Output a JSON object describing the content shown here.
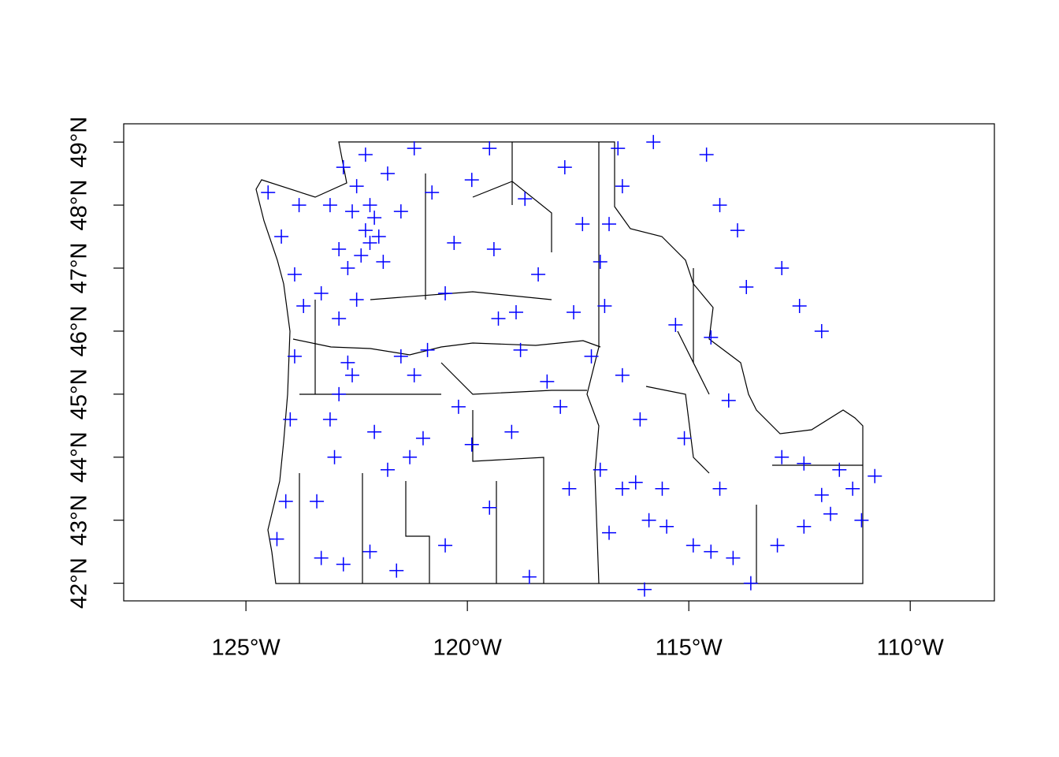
{
  "chart_data": {
    "type": "scatter",
    "color": "#0000ff",
    "x": [
      -122.3,
      -122.2,
      -122.1,
      -122.4,
      -122.6,
      -122.0,
      -122.5,
      -122.3,
      -121.8,
      -122.7,
      -122.9,
      -121.9,
      -122.2,
      -122.8,
      -123.1,
      -123.8,
      -124.5,
      -124.2,
      -123.9,
      -123.7,
      -123.3,
      -122.9,
      -122.5,
      -121.5,
      -121.2,
      -120.8,
      -120.3,
      -119.9,
      -119.5,
      -119.4,
      -118.9,
      -119.3,
      -120.5,
      -120.9,
      -121.5,
      -122.7,
      -122.6,
      -122.9,
      -123.1,
      -123.0,
      -123.4,
      -123.3,
      -122.8,
      -122.2,
      -121.6,
      -124.1,
      -124.0,
      -123.9,
      -124.3,
      -120.5,
      -119.5,
      -118.6,
      -117.7,
      -117.0,
      -116.2,
      -116.5,
      -115.9,
      -116.8,
      -115.5,
      -114.9,
      -114.5,
      -114.0,
      -113.6,
      -113.0,
      -112.4,
      -112.0,
      -111.6,
      -111.3,
      -111.8,
      -112.4,
      -112.9,
      -111.1,
      -110.8,
      -114.3,
      -115.1,
      -114.1,
      -116.1,
      -116.5,
      -116.9,
      -117.0,
      -117.4,
      -116.8,
      -116.5,
      -116.6,
      -115.8,
      -114.6,
      -114.3,
      -113.9,
      -113.7,
      -112.9,
      -112.5,
      -112.0,
      -114.5,
      -115.3,
      -117.6,
      -118.4,
      -117.8,
      -118.7,
      -121.0,
      -121.3,
      -120.2,
      -119.0,
      -119.9,
      -118.2,
      -117.2,
      -118.8,
      -121.8,
      -122.1,
      -121.2,
      -115.6,
      -116.0,
      -117.9
    ],
    "y": [
      47.6,
      47.4,
      47.8,
      47.2,
      47.9,
      47.5,
      48.3,
      48.8,
      48.5,
      47.0,
      47.3,
      47.1,
      48.0,
      48.6,
      48.0,
      48.0,
      48.2,
      47.5,
      46.9,
      46.4,
      46.6,
      46.2,
      46.5,
      47.9,
      48.9,
      48.2,
      47.4,
      48.4,
      48.9,
      47.3,
      46.3,
      46.2,
      46.6,
      45.7,
      45.6,
      45.5,
      45.3,
      45.0,
      44.6,
      44.0,
      43.3,
      42.4,
      42.3,
      42.5,
      42.2,
      43.3,
      44.6,
      45.6,
      42.7,
      42.6,
      43.2,
      42.1,
      43.5,
      43.8,
      43.6,
      43.5,
      43.0,
      42.8,
      42.9,
      42.6,
      42.5,
      42.4,
      42.0,
      42.6,
      42.9,
      43.4,
      43.8,
      43.5,
      43.1,
      43.9,
      44.0,
      43.0,
      43.7,
      43.5,
      44.3,
      44.9,
      44.6,
      45.3,
      46.4,
      47.1,
      47.7,
      47.7,
      48.3,
      48.9,
      49.0,
      48.8,
      48.0,
      47.6,
      46.7,
      47.0,
      46.4,
      46.0,
      45.9,
      46.1,
      46.3,
      46.9,
      48.6,
      48.1,
      44.3,
      44.0,
      44.8,
      44.4,
      44.2,
      45.2,
      45.6,
      45.7,
      43.8,
      44.4,
      45.3,
      43.5,
      41.9,
      44.8
    ],
    "xlim": [
      -127.76,
      -108.1
    ],
    "ylim": [
      41.72,
      49.29
    ],
    "xticks": [
      {
        "value": -125,
        "label": "125°W"
      },
      {
        "value": -120,
        "label": "120°W"
      },
      {
        "value": -115,
        "label": "115°W"
      },
      {
        "value": -110,
        "label": "110°W"
      }
    ],
    "yticks": [
      {
        "value": 42,
        "label": "42°N"
      },
      {
        "value": 43,
        "label": "43°N"
      },
      {
        "value": 44,
        "label": "44°N"
      },
      {
        "value": 45,
        "label": "45°N"
      },
      {
        "value": 46,
        "label": "46°N"
      },
      {
        "value": 47,
        "label": "47°N"
      },
      {
        "value": 48,
        "label": "48°N"
      },
      {
        "value": 49,
        "label": "49°N"
      }
    ]
  }
}
